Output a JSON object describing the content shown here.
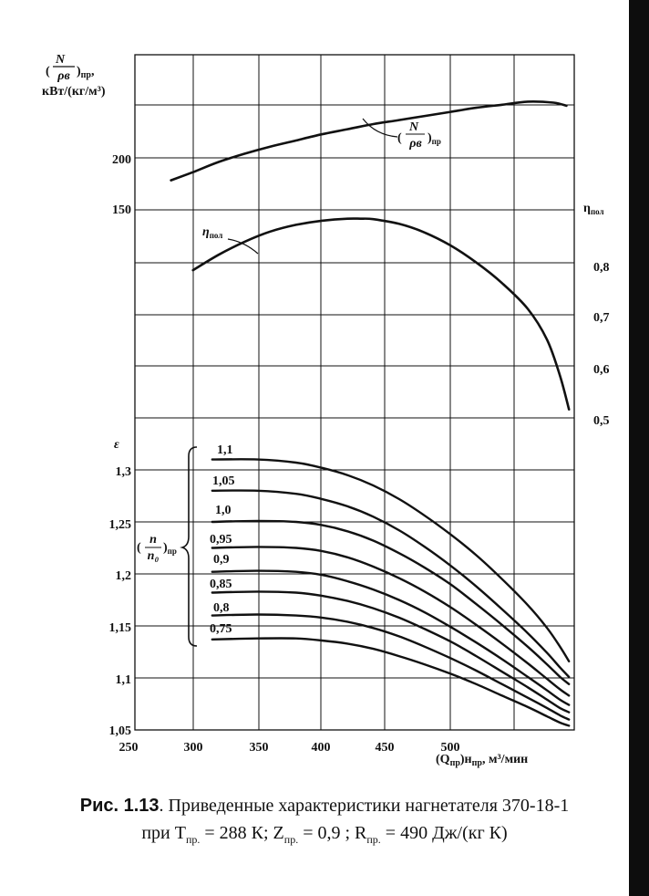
{
  "chart_data": {
    "type": "line",
    "x_axis": {
      "label_main": "(Q",
      "label_sub1": "пр",
      "label_mid": ")н",
      "label_sub2": "пр",
      "label_units": ", м³/мин",
      "ticks": [
        250,
        300,
        350,
        400,
        450,
        500
      ],
      "range": [
        250,
        600
      ]
    },
    "power_axis": {
      "label_line1_num": "N",
      "label_line1_den": "ρв",
      "label_line1_sub": "пр",
      "label_line1_suffix": ",",
      "label_line2": "кВт/(кг/м³)",
      "ticks": [
        150,
        200
      ]
    },
    "eta_axis": {
      "label": "η",
      "label_sub": "пол",
      "ticks": [
        "0,5",
        "0,6",
        "0,7",
        "0,8"
      ],
      "tick_values": [
        0.5,
        0.6,
        0.7,
        0.8
      ]
    },
    "eps_axis": {
      "label": "ε",
      "ticks": [
        "1,05",
        "1,1",
        "1,15",
        "1,2",
        "1,25",
        "1,3"
      ],
      "tick_values": [
        1.05,
        1.1,
        1.15,
        1.2,
        1.25,
        1.3
      ],
      "range": [
        1.05,
        1.35
      ]
    },
    "param_label": {
      "num": "n",
      "den": "n₀",
      "sub": "пр"
    },
    "power_curve": {
      "label_num": "N",
      "label_den": "ρв",
      "label_sub": "пр",
      "x": [
        283,
        300,
        320,
        340,
        360,
        380,
        400,
        420,
        440,
        460,
        480,
        500,
        520,
        540,
        560,
        580,
        590
      ],
      "y": [
        178,
        186,
        196,
        204,
        211,
        217,
        223,
        228,
        233,
        237,
        241,
        245,
        249,
        252,
        255,
        254,
        251
      ]
    },
    "efficiency_curve": {
      "label": "η",
      "label_sub": "пол",
      "x": [
        300,
        320,
        340,
        360,
        380,
        400,
        420,
        430,
        440,
        460,
        480,
        500,
        520,
        540,
        560,
        575,
        585,
        592
      ],
      "y": [
        0.79,
        0.82,
        0.845,
        0.865,
        0.878,
        0.886,
        0.89,
        0.89,
        0.889,
        0.88,
        0.863,
        0.838,
        0.805,
        0.765,
        0.715,
        0.655,
        0.585,
        0.52
      ]
    },
    "pressure_ratio_series": [
      {
        "name": "1,1",
        "x": [
          315,
          350,
          380,
          400,
          420,
          440,
          460,
          480,
          500,
          520,
          540,
          560,
          575,
          585,
          592
        ],
        "y": [
          1.31,
          1.31,
          1.307,
          1.302,
          1.295,
          1.285,
          1.272,
          1.256,
          1.238,
          1.218,
          1.195,
          1.17,
          1.148,
          1.13,
          1.116
        ]
      },
      {
        "name": "1,05",
        "x": [
          315,
          350,
          380,
          400,
          420,
          440,
          460,
          480,
          500,
          520,
          540,
          560,
          575,
          585,
          592
        ],
        "y": [
          1.28,
          1.28,
          1.277,
          1.272,
          1.265,
          1.255,
          1.242,
          1.226,
          1.208,
          1.188,
          1.166,
          1.143,
          1.124,
          1.11,
          1.101
        ]
      },
      {
        "name": "1,0",
        "x": [
          315,
          350,
          380,
          400,
          420,
          440,
          460,
          480,
          500,
          520,
          540,
          560,
          575,
          585,
          592
        ],
        "y": [
          1.25,
          1.251,
          1.25,
          1.247,
          1.241,
          1.232,
          1.22,
          1.206,
          1.19,
          1.171,
          1.151,
          1.13,
          1.113,
          1.101,
          1.094
        ]
      },
      {
        "name": "0,95",
        "x": [
          315,
          350,
          380,
          400,
          420,
          440,
          460,
          480,
          500,
          520,
          540,
          560,
          575,
          585,
          592
        ],
        "y": [
          1.225,
          1.226,
          1.225,
          1.222,
          1.216,
          1.207,
          1.196,
          1.183,
          1.168,
          1.151,
          1.133,
          1.114,
          1.099,
          1.089,
          1.083
        ]
      },
      {
        "name": "0,9",
        "x": [
          315,
          350,
          380,
          400,
          420,
          440,
          460,
          480,
          500,
          520,
          540,
          560,
          575,
          585,
          592
        ],
        "y": [
          1.202,
          1.203,
          1.202,
          1.199,
          1.193,
          1.185,
          1.175,
          1.163,
          1.149,
          1.134,
          1.118,
          1.101,
          1.088,
          1.079,
          1.074
        ]
      },
      {
        "name": "0,85",
        "x": [
          315,
          350,
          380,
          400,
          420,
          440,
          460,
          480,
          500,
          520,
          540,
          560,
          575,
          585,
          592
        ],
        "y": [
          1.182,
          1.183,
          1.182,
          1.179,
          1.174,
          1.167,
          1.158,
          1.147,
          1.135,
          1.121,
          1.106,
          1.091,
          1.079,
          1.071,
          1.067
        ]
      },
      {
        "name": "0,8",
        "x": [
          315,
          350,
          380,
          400,
          420,
          440,
          460,
          480,
          500,
          520,
          540,
          560,
          575,
          585,
          592
        ],
        "y": [
          1.16,
          1.161,
          1.16,
          1.158,
          1.154,
          1.148,
          1.14,
          1.13,
          1.119,
          1.107,
          1.094,
          1.081,
          1.071,
          1.064,
          1.06
        ]
      },
      {
        "name": "0,75",
        "x": [
          315,
          350,
          380,
          400,
          420,
          440,
          460,
          480,
          500,
          520,
          540,
          560,
          575,
          585,
          592
        ],
        "y": [
          1.137,
          1.138,
          1.138,
          1.136,
          1.133,
          1.128,
          1.121,
          1.113,
          1.104,
          1.094,
          1.083,
          1.072,
          1.063,
          1.057,
          1.054
        ]
      }
    ],
    "grid": true
  },
  "caption": {
    "fig_label": "Рис. 1.13",
    "line1_text": ". Приведенные характеристики нагнетателя 370-18-1",
    "line2_prefix": "при  T",
    "line2_t_sub": "пр.",
    "line2_t_val": " = 288  К;  Z",
    "line2_z_sub": "пр.",
    "line2_z_val": " = 0,9 ;  R",
    "line2_r_sub": "пр.",
    "line2_r_val": " = 490  Дж/(кг К)"
  }
}
